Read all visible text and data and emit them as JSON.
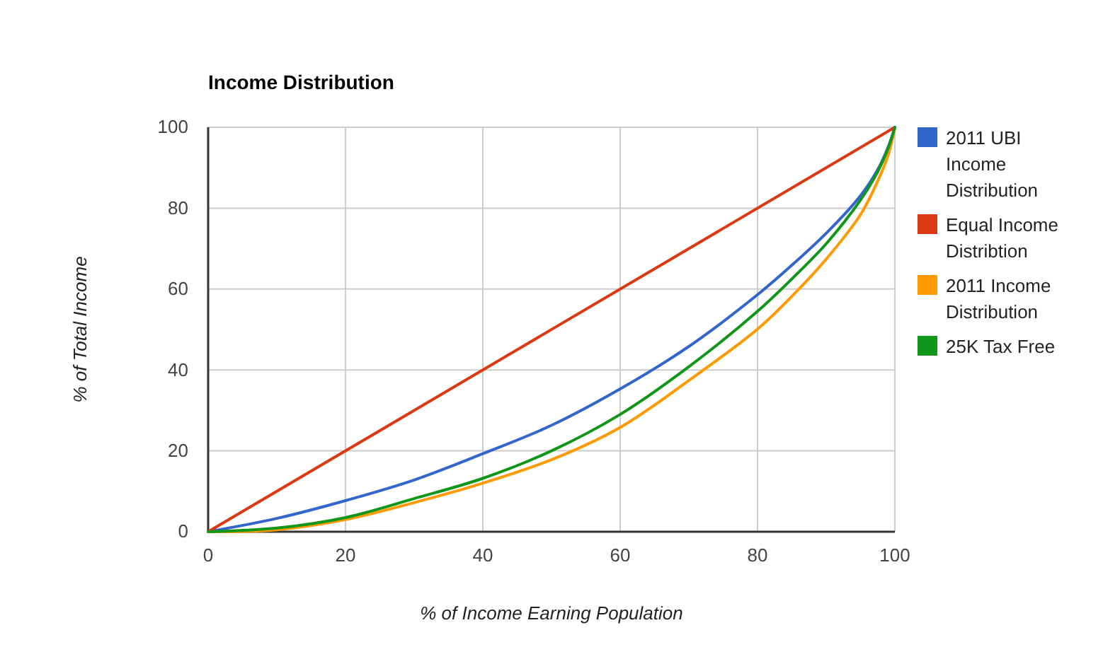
{
  "chart_data": {
    "type": "line",
    "title": "Income Distribution",
    "xlabel": "% of Income Earning Population",
    "ylabel": "% of Total Income",
    "xlim": [
      0,
      100
    ],
    "xticks": [
      0,
      20,
      40,
      60,
      80,
      100
    ],
    "ylim": [
      0,
      100
    ],
    "yticks": [
      0,
      20,
      40,
      60,
      80,
      100
    ],
    "grid": true,
    "legend": "right",
    "marker": "none",
    "line_style": "solid",
    "series": [
      {
        "name": "2011 UBI Income Distribution",
        "color": "#3366cc",
        "x": [
          0,
          10,
          20,
          30,
          40,
          50,
          60,
          70,
          80,
          85,
          90,
          95,
          97.5,
          99,
          100
        ],
        "values": [
          0,
          3.3,
          7.7,
          12.8,
          19.3,
          26.3,
          35.3,
          45.8,
          58.6,
          65.9,
          73.8,
          83.1,
          89.5,
          95,
          100
        ]
      },
      {
        "name": "Equal Income Distribtion",
        "color": "#dc3912",
        "x": [
          0,
          100
        ],
        "values": [
          0,
          100
        ]
      },
      {
        "name": "2011 Income Distribution",
        "color": "#ff9900",
        "x": [
          0,
          10,
          20,
          30,
          40,
          50,
          60,
          70,
          80,
          85,
          90,
          95,
          97.5,
          99,
          100
        ],
        "values": [
          0,
          0.5,
          3,
          7.2,
          12,
          17.8,
          25.8,
          37.4,
          50.1,
          58.2,
          67.4,
          78.4,
          86.7,
          93,
          100
        ]
      },
      {
        "name": "25K Tax Free",
        "color": "#109618",
        "x": [
          0,
          10,
          20,
          30,
          40,
          50,
          60,
          70,
          80,
          85,
          90,
          95,
          97.5,
          99,
          100
        ],
        "values": [
          0,
          0.9,
          3.5,
          8.2,
          13.2,
          20,
          29,
          40.8,
          54.5,
          62.5,
          71.2,
          82,
          89,
          94.7,
          100
        ]
      }
    ]
  }
}
